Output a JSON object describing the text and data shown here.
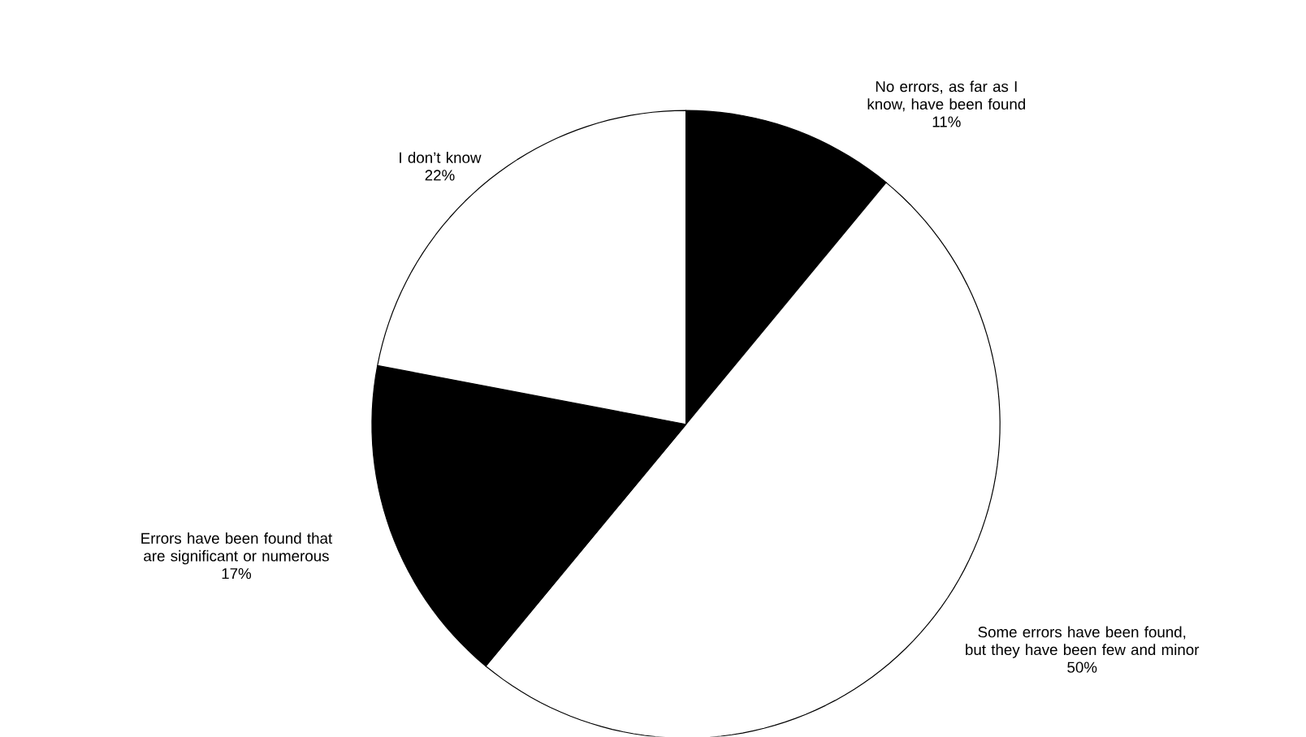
{
  "chart_data": {
    "type": "pie",
    "categories": [
      "No errors, as far as I know, have been found",
      "Some errors have been found, but they have been few and minor",
      "Errors have been found that are significant or numerous",
      "I don’t know"
    ],
    "values": [
      11,
      50,
      17,
      22
    ],
    "value_labels": [
      "11%",
      "50%",
      "17%",
      "22%"
    ],
    "colors": [
      "#000000",
      "#ffffff",
      "#000000",
      "#ffffff"
    ]
  }
}
